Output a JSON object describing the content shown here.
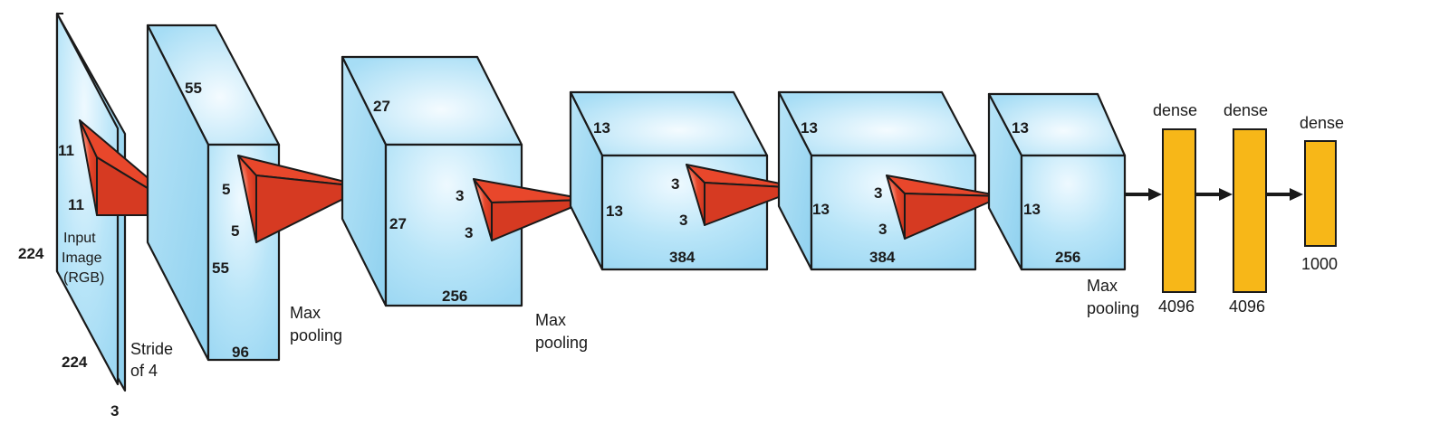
{
  "colors": {
    "volume": "#a6ddf5",
    "volume_highlight": "#eef9ff",
    "kernel": "#e8472b",
    "kernel_light": "#fbd5c8",
    "dense": "#f7b718",
    "stroke": "#1a1a1a"
  },
  "input": {
    "height": "224",
    "width": "224",
    "depth": "3",
    "kernel_h": "11",
    "kernel_w": "11",
    "label_line1": "Input",
    "label_line2": "Image",
    "label_line3": "(RGB)",
    "stride_line1": "Stride",
    "stride_line2": "of 4"
  },
  "conv1": {
    "height": "55",
    "width": "55",
    "depth": "96",
    "kernel_h": "5",
    "kernel_w": "5"
  },
  "pool1": {
    "line1": "Max",
    "line2": "pooling"
  },
  "conv2": {
    "height": "27",
    "width": "27",
    "depth": "256",
    "kernel_h": "3",
    "kernel_w": "3"
  },
  "pool2": {
    "line1": "Max",
    "line2": "pooling"
  },
  "conv3": {
    "height": "13",
    "width": "13",
    "depth": "384",
    "kernel_h": "3",
    "kernel_w": "3"
  },
  "conv4": {
    "height": "13",
    "width": "13",
    "depth": "384",
    "kernel_h": "3",
    "kernel_w": "3"
  },
  "conv5": {
    "height": "13",
    "width": "13",
    "depth": "256"
  },
  "pool3": {
    "line1": "Max",
    "line2": "pooling"
  },
  "dense1": {
    "label": "dense",
    "size": "4096"
  },
  "dense2": {
    "label": "dense",
    "size": "4096"
  },
  "dense3": {
    "label": "dense",
    "size": "1000"
  }
}
